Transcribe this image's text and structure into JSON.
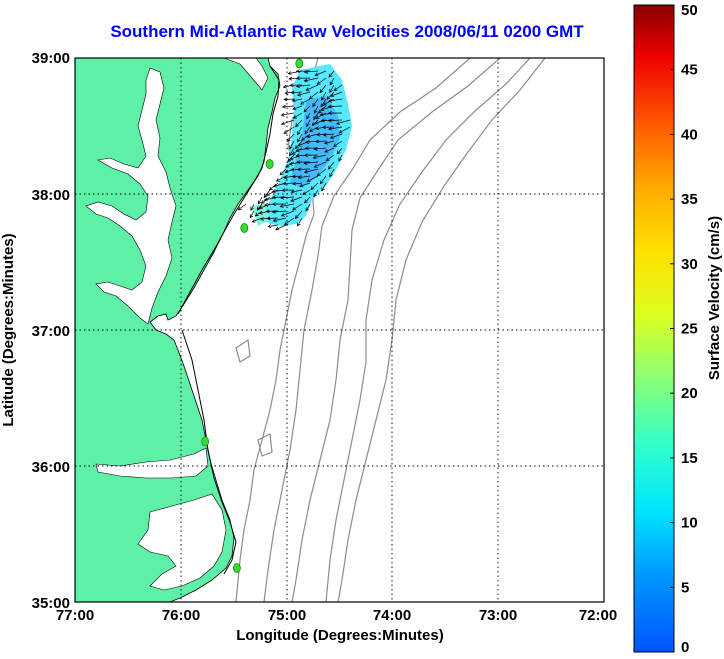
{
  "title": "Southern Mid-Atlantic Raw Velocities 2008/06/11 0200 GMT",
  "xlabel": "Longitude (Degrees:Minutes)",
  "ylabel": "Latitude (Degrees:Minutes)",
  "colorbar_label": "Surface Velocity (cm/s)",
  "x_ticks": [
    {
      "lon": -77,
      "label": "77:00"
    },
    {
      "lon": -76,
      "label": "76:00"
    },
    {
      "lon": -75,
      "label": "75:00"
    },
    {
      "lon": -74,
      "label": "74:00"
    },
    {
      "lon": -73,
      "label": "73:00"
    },
    {
      "lon": -72,
      "label": "72:00"
    }
  ],
  "y_ticks": [
    {
      "lat": 35,
      "label": "35:00"
    },
    {
      "lat": 36,
      "label": "36:00"
    },
    {
      "lat": 37,
      "label": "37:00"
    },
    {
      "lat": 38,
      "label": "38:00"
    },
    {
      "lat": 39,
      "label": "39:00"
    }
  ],
  "colorbar_ticks": [
    "0",
    "5",
    "10",
    "15",
    "20",
    "25",
    "30",
    "35",
    "40",
    "45",
    "50"
  ],
  "colors": {
    "title": "#0000ff",
    "land": "#5ff0a8",
    "contour": "#8c8c8c",
    "site_marker": "#33dd33",
    "vector": "#000000",
    "grid": "#000000"
  },
  "chart_data": {
    "type": "vector_map",
    "xlim": [
      -77,
      -72
    ],
    "ylim": [
      35,
      39
    ],
    "colorbar_range": [
      0,
      50
    ],
    "grid": true,
    "radar_sites": [
      {
        "lon": -74.88,
        "lat": 38.96
      },
      {
        "lon": -75.16,
        "lat": 38.22
      },
      {
        "lon": -75.4,
        "lat": 37.75
      },
      {
        "lon": -75.77,
        "lat": 36.18
      },
      {
        "lon": -75.47,
        "lat": 35.25
      }
    ],
    "velocity_field": {
      "lon_range": [
        -75.3,
        -74.56
      ],
      "lat_range": [
        37.75,
        38.98
      ],
      "typical_speed_cm_s": [
        3,
        12
      ],
      "predominant_direction": "toward southwest"
    }
  }
}
